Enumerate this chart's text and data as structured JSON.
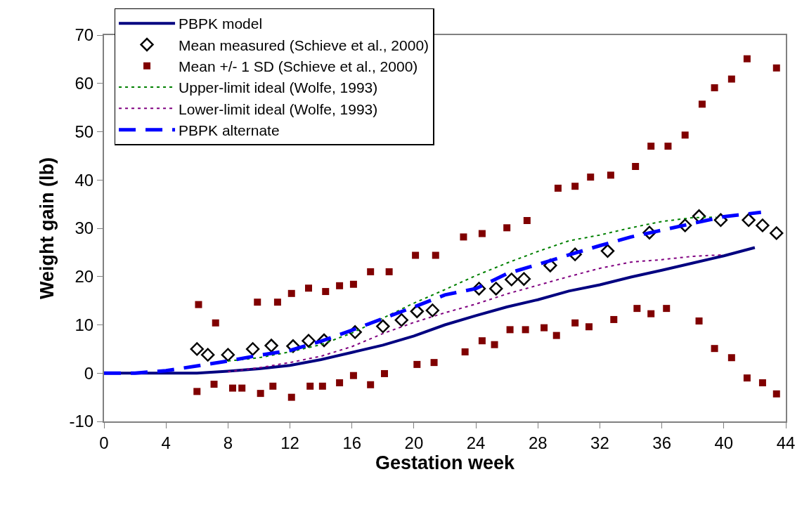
{
  "chart_data": {
    "type": "line",
    "xlabel": "Gestation week",
    "ylabel": "Weight gain (lb)",
    "xlim": [
      0,
      44
    ],
    "xticks": [
      0,
      4,
      8,
      12,
      16,
      20,
      24,
      28,
      32,
      36,
      40,
      44
    ],
    "ylim": [
      -10,
      70
    ],
    "yticks": [
      -10,
      0,
      10,
      20,
      30,
      40,
      50,
      60,
      70
    ],
    "legend": "top left",
    "series": [
      {
        "name": "PBPK model",
        "color": "#000080",
        "line_style": "solid",
        "marker": "none",
        "x": [
          0,
          6,
          8,
          10,
          12,
          14,
          16,
          18,
          20,
          22,
          24,
          26,
          28,
          30,
          32,
          34,
          36,
          38,
          40,
          42
        ],
        "values": [
          0,
          0,
          0.4,
          0.9,
          1.6,
          2.8,
          4.3,
          5.8,
          7.7,
          10,
          11.9,
          13.7,
          15.2,
          17,
          18.3,
          19.9,
          21.3,
          22.8,
          24.3,
          26
        ]
      },
      {
        "name": "Mean measured (Schieve et al., 2000)",
        "type": "scatter",
        "color": "#000000",
        "marker": "diamond",
        "x": [
          6,
          6.7,
          8,
          9.6,
          10.8,
          12.2,
          13.2,
          14.2,
          16.2,
          18,
          19.2,
          20.2,
          21.2,
          24.2,
          25.3,
          26.3,
          27.1,
          28.8,
          30.4,
          32.5,
          35.2,
          37.5,
          38.4,
          39.8,
          41.6,
          42.5,
          43.4
        ],
        "values": [
          5.0,
          3.8,
          3.8,
          5.0,
          5.7,
          5.6,
          6.7,
          6.8,
          8.5,
          9.7,
          11,
          12.8,
          13,
          17.5,
          17.5,
          19.4,
          19.5,
          22.3,
          24.6,
          25.3,
          29.1,
          30.6,
          32.5,
          31.7,
          31.7,
          30.6,
          29.0
        ]
      },
      {
        "name": "Mean +/- 1 SD (Schieve et al., 2000)",
        "type": "scatter",
        "color": "#800000",
        "marker": "square",
        "x": [
          6.1,
          7.2,
          9.9,
          11.2,
          12.1,
          13.2,
          14.3,
          15.2,
          16.1,
          17.2,
          18.4,
          20.1,
          21.4,
          23.2,
          24.4,
          26.0,
          27.3,
          29.3,
          30.4,
          31.4,
          32.7,
          34.3,
          35.3,
          36.4,
          37.5,
          38.6,
          39.4,
          40.5,
          41.5,
          43.4,
          6.0,
          7.1,
          8.3,
          8.9,
          10.1,
          10.9,
          12.1,
          13.3,
          14.1,
          15.2,
          16.1,
          17.2,
          18.1,
          20.2,
          21.3,
          23.3,
          24.4,
          25.2,
          26.2,
          27.2,
          28.4,
          29.2,
          30.4,
          31.3,
          32.9,
          34.4,
          35.3,
          36.3,
          38.4,
          39.4,
          40.5,
          41.5,
          42.5,
          43.4
        ],
        "values": [
          14.2,
          10.4,
          14.7,
          14.7,
          16.5,
          17.6,
          16.9,
          18.1,
          18.4,
          21.0,
          21.0,
          24.4,
          24.4,
          28.2,
          28.9,
          30.1,
          31.6,
          38.3,
          38.7,
          40.6,
          41.0,
          42.8,
          47.0,
          47.0,
          49.3,
          55.7,
          59.1,
          60.9,
          65.1,
          63.2,
          -3.8,
          -2.3,
          -3.1,
          -3.1,
          -4.2,
          -2.7,
          -5.0,
          -2.7,
          -2.7,
          -2.0,
          -0.5,
          -2.4,
          -0.1,
          1.8,
          2.2,
          4.4,
          6.7,
          5.9,
          9.0,
          9.0,
          9.4,
          7.8,
          10.4,
          9.6,
          11.1,
          13.4,
          12.3,
          13.4,
          10.8,
          5.1,
          3.2,
          -1.0,
          -2.0,
          -4.3
        ]
      },
      {
        "name": "Upper-limit ideal (Wolfe, 1993)",
        "color": "#008000",
        "line_style": "dotted",
        "marker": "none",
        "x": [
          8,
          10,
          12,
          14,
          15,
          16,
          18,
          20,
          22,
          24,
          26,
          28,
          30,
          32,
          34,
          36,
          38,
          39.5
        ],
        "values": [
          2.5,
          3.2,
          4.4,
          5.9,
          7.1,
          8.3,
          11.4,
          14.5,
          17.3,
          20.2,
          22.8,
          25.2,
          27.4,
          28.6,
          30.1,
          31.4,
          32.2,
          32.3
        ]
      },
      {
        "name": "Lower-limit ideal (Wolfe, 1993)",
        "color": "#800080",
        "line_style": "dotted",
        "marker": "none",
        "x": [
          8,
          10,
          12,
          14,
          16,
          18,
          20,
          22,
          24,
          26,
          28,
          30,
          32,
          34,
          36,
          38,
          40
        ],
        "values": [
          0.3,
          1.1,
          2.2,
          3.5,
          5.5,
          8.2,
          10.5,
          12.5,
          14.3,
          16.4,
          18.2,
          20.0,
          21.7,
          23.0,
          23.5,
          24.2,
          24.5
        ]
      },
      {
        "name": "PBPK alternate",
        "color": "#0000ff",
        "line_style": "dashed",
        "marker": "none",
        "x": [
          0,
          2,
          4,
          6,
          8,
          10,
          12,
          14,
          16,
          18,
          20,
          22,
          24,
          26,
          28,
          30,
          32,
          34,
          36,
          38,
          40,
          42.4
        ],
        "values": [
          0,
          0,
          0.5,
          1.5,
          2.5,
          3.7,
          4.7,
          6.6,
          8.9,
          11.3,
          13.7,
          16.2,
          17.5,
          20.6,
          22.5,
          24.5,
          26.4,
          28.2,
          29.6,
          31.0,
          32.4,
          33.3
        ]
      }
    ]
  }
}
